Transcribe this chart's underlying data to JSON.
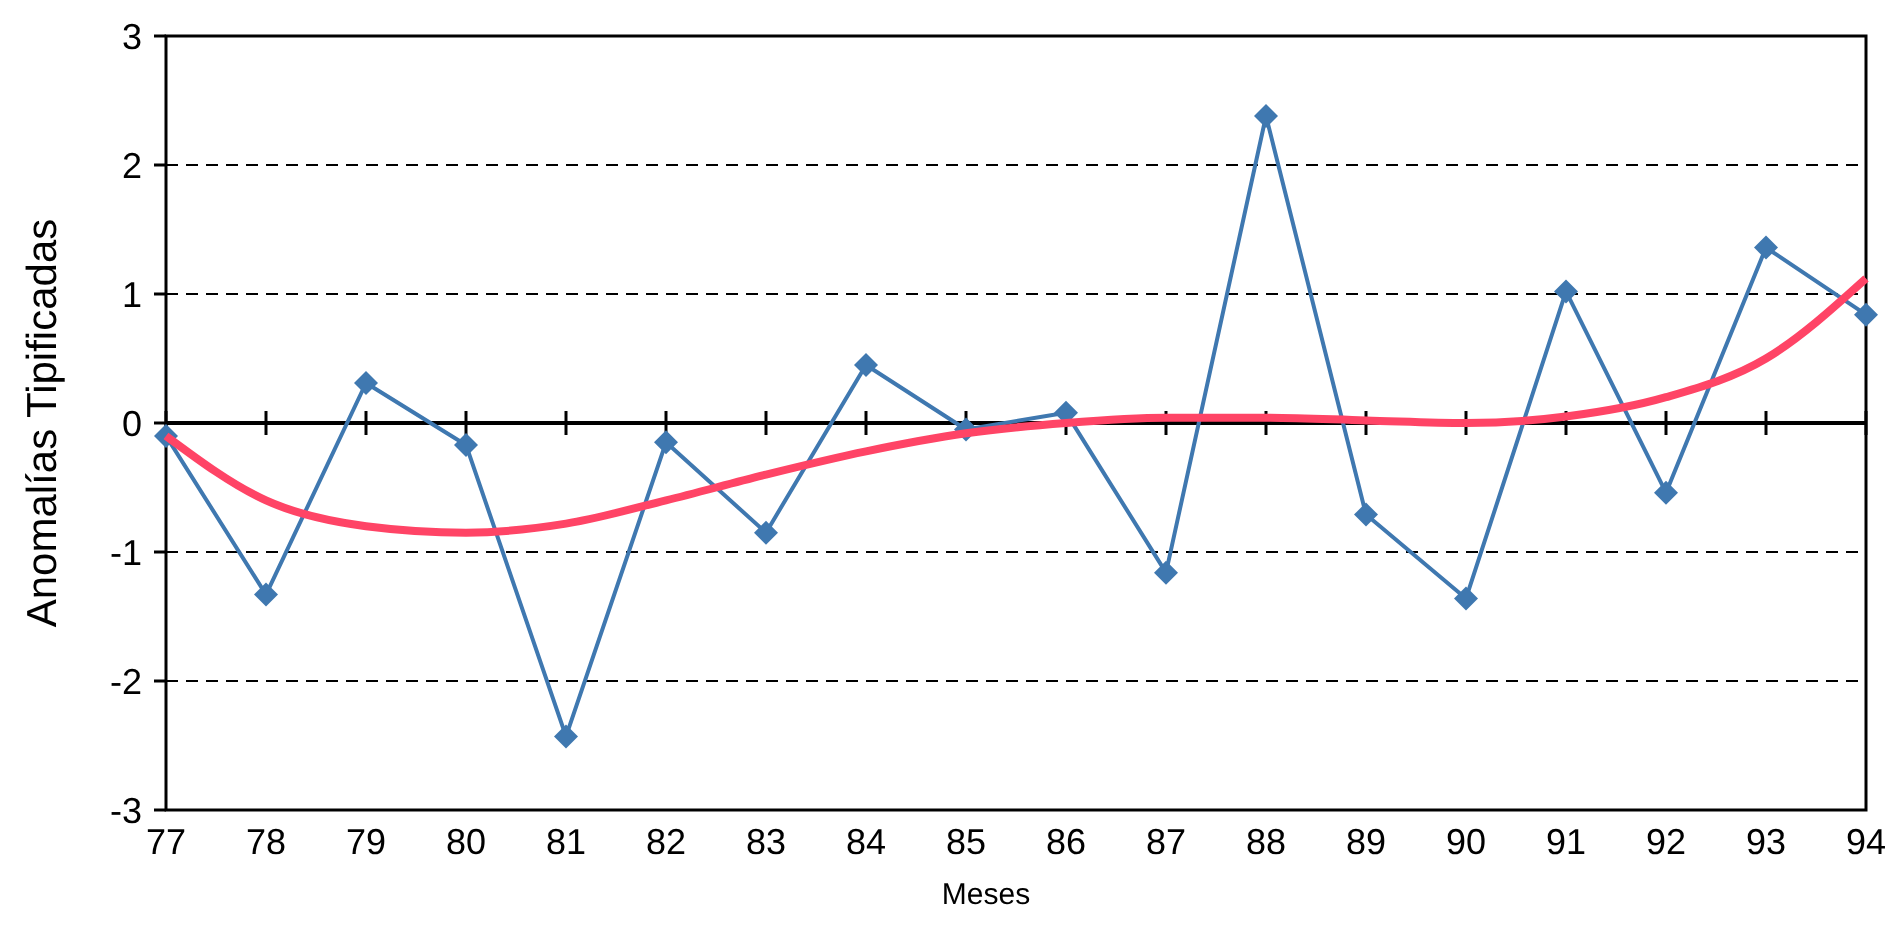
{
  "chart_data": {
    "type": "line",
    "xlabel": "Meses",
    "ylabel": "Anomalías Tipificadas",
    "categories": [
      "77",
      "78",
      "79",
      "80",
      "81",
      "82",
      "83",
      "84",
      "85",
      "86",
      "87",
      "88",
      "89",
      "90",
      "91",
      "92",
      "93",
      "94"
    ],
    "ylim": [
      -3,
      3
    ],
    "yticks": [
      -3,
      -2,
      -1,
      0,
      1,
      2,
      3
    ],
    "grid": "y",
    "series": [
      {
        "type": "line",
        "color": "#3f78b0",
        "marker": "diamond",
        "values": [
          -0.1,
          -1.33,
          0.31,
          -0.17,
          -2.43,
          -0.15,
          -0.85,
          0.45,
          -0.05,
          0.08,
          -1.16,
          2.38,
          -0.71,
          -1.36,
          1.02,
          -0.54,
          1.36,
          0.84
        ]
      },
      {
        "type": "line",
        "color": "#ff4466",
        "marker": "none",
        "values": [
          -0.1,
          -0.6,
          -0.8,
          -0.85,
          -0.78,
          -0.6,
          -0.4,
          -0.22,
          -0.08,
          0.0,
          0.04,
          0.04,
          0.02,
          0.0,
          0.05,
          0.2,
          0.5,
          1.12
        ]
      }
    ]
  }
}
